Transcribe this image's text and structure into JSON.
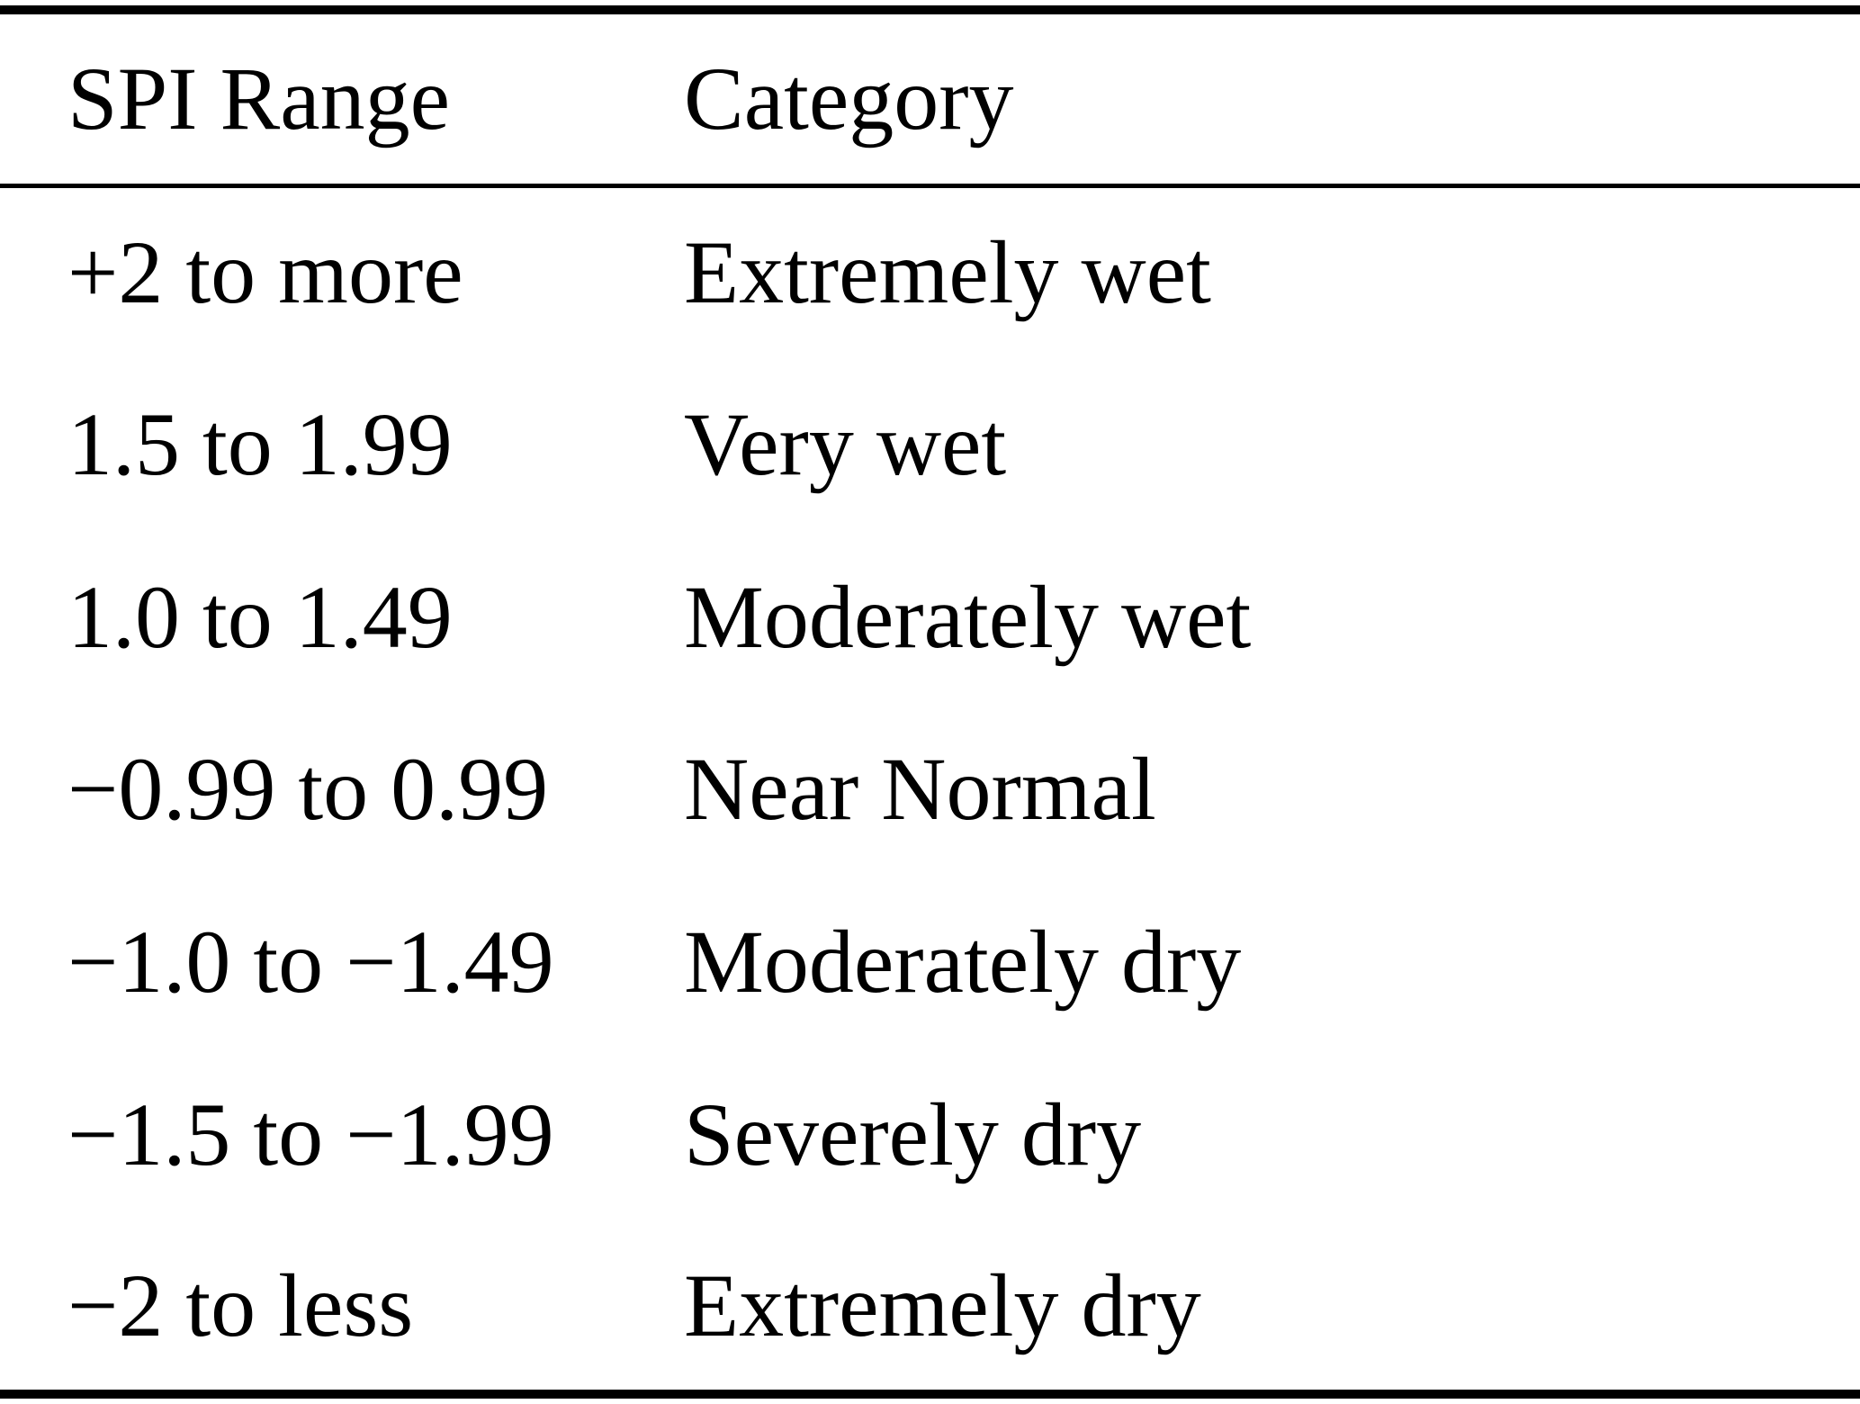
{
  "table": {
    "columns": [
      "SPI Range",
      "Category"
    ],
    "rows": [
      {
        "range": "+2 to more",
        "category": "Extremely wet"
      },
      {
        "range": "1.5 to 1.99",
        "category": "Very wet"
      },
      {
        "range": "1.0 to 1.49",
        "category": "Moderately wet"
      },
      {
        "range": "−0.99 to 0.99",
        "category": "Near Normal"
      },
      {
        "range": "−1.0 to −1.49",
        "category": "Moderately dry"
      },
      {
        "range": "−1.5 to −1.99",
        "category": "Severely dry"
      },
      {
        "range": "−2 to less",
        "category": "Extremely dry"
      }
    ],
    "colors": {
      "text": "#000000",
      "background": "#ffffff",
      "rule": "#000000"
    }
  }
}
